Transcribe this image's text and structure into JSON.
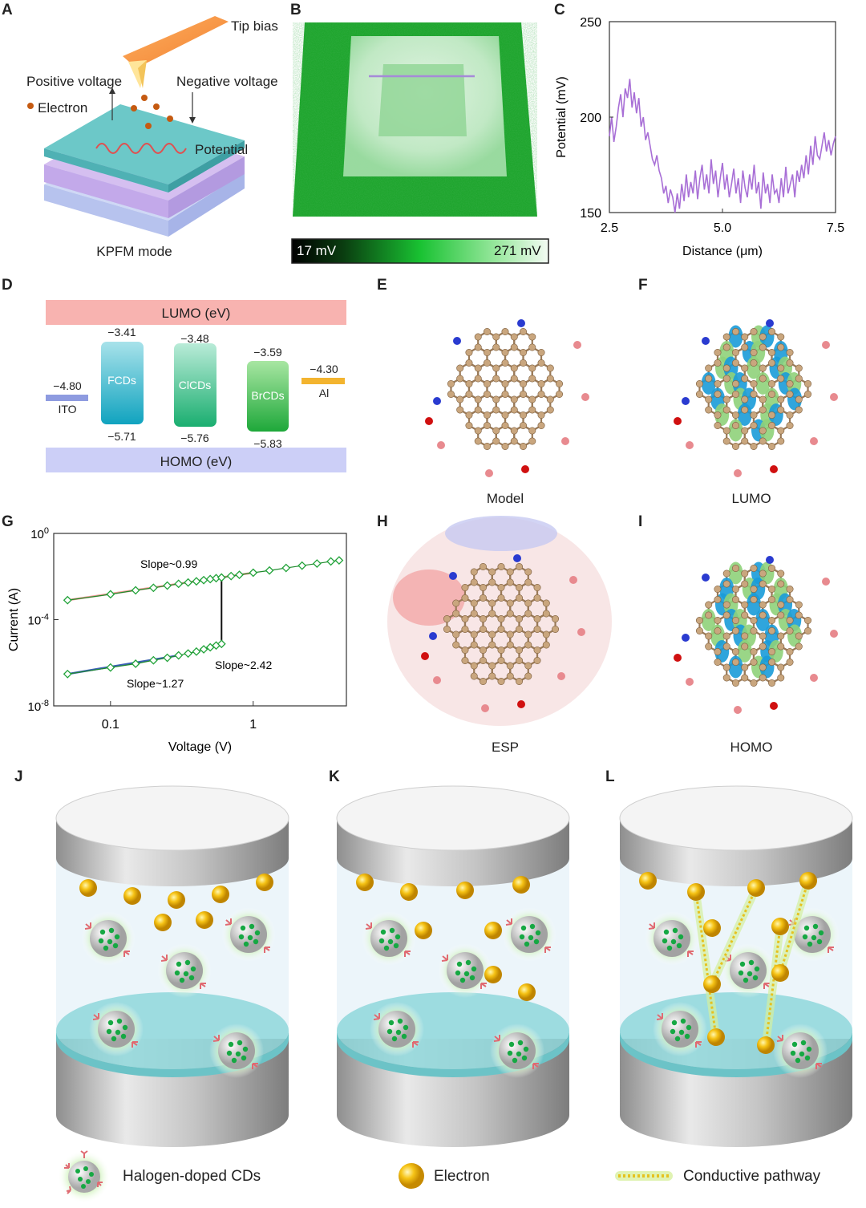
{
  "panels": {
    "A": {
      "letter": "A",
      "tip": "Tip bias",
      "pos": "Positive voltage",
      "neg": "Negative voltage",
      "electron": "Electron",
      "potential": "Potential",
      "caption": "KPFM mode"
    },
    "B": {
      "letter": "B",
      "cb_min": "17 mV",
      "cb_max": "271 mV"
    },
    "C": {
      "letter": "C"
    },
    "D": {
      "letter": "D",
      "lumo": "LUMO (eV)",
      "homo": "HOMO (eV)",
      "ito": {
        "label": "ITO",
        "value": "−4.80"
      },
      "al": {
        "label": "Al",
        "value": "−4.30"
      },
      "bars": [
        {
          "name": "FCDs",
          "top": "−3.41",
          "bottom": "−5.71"
        },
        {
          "name": "ClCDs",
          "top": "−3.48",
          "bottom": "−5.76"
        },
        {
          "name": "BrCDs",
          "top": "−3.59",
          "bottom": "−5.83"
        }
      ]
    },
    "E": {
      "letter": "E",
      "caption": "Model"
    },
    "F": {
      "letter": "F",
      "caption": "LUMO"
    },
    "G": {
      "letter": "G"
    },
    "H": {
      "letter": "H",
      "caption": "ESP"
    },
    "I": {
      "letter": "I",
      "caption": "HOMO"
    },
    "J": {
      "letter": "J"
    },
    "K": {
      "letter": "K"
    },
    "L": {
      "letter": "L"
    }
  },
  "legend": {
    "cd": "Halogen-doped CDs",
    "electron": "Electron",
    "pathway": "Conductive pathway"
  },
  "chart_data": [
    {
      "panel": "C",
      "type": "line",
      "xlabel": "Distance (μm)",
      "ylabel": "Potential (mV)",
      "xlim": [
        2.5,
        7.5
      ],
      "ylim": [
        150,
        250
      ],
      "xticks": [
        "2.5",
        "5.0",
        "7.5"
      ],
      "yticks": [
        "150",
        "200",
        "250"
      ],
      "x": [
        2.5,
        2.55,
        2.6,
        2.65,
        2.7,
        2.75,
        2.8,
        2.85,
        2.9,
        2.95,
        3.0,
        3.05,
        3.1,
        3.15,
        3.2,
        3.25,
        3.3,
        3.35,
        3.4,
        3.45,
        3.5,
        3.55,
        3.6,
        3.65,
        3.7,
        3.75,
        3.8,
        3.85,
        3.9,
        3.95,
        4.0,
        4.05,
        4.1,
        4.15,
        4.2,
        4.25,
        4.3,
        4.35,
        4.4,
        4.45,
        4.5,
        4.55,
        4.6,
        4.65,
        4.7,
        4.75,
        4.8,
        4.85,
        4.9,
        4.95,
        5.0,
        5.05,
        5.1,
        5.15,
        5.2,
        5.25,
        5.3,
        5.35,
        5.4,
        5.45,
        5.5,
        5.55,
        5.6,
        5.65,
        5.7,
        5.75,
        5.8,
        5.85,
        5.9,
        5.95,
        6.0,
        6.05,
        6.1,
        6.15,
        6.2,
        6.25,
        6.3,
        6.35,
        6.4,
        6.45,
        6.5,
        6.55,
        6.6,
        6.65,
        6.7,
        6.75,
        6.8,
        6.85,
        6.9,
        6.95,
        7.0,
        7.05,
        7.1,
        7.15,
        7.2,
        7.25,
        7.3,
        7.35,
        7.4,
        7.45,
        7.5
      ],
      "y": [
        190,
        200,
        187,
        195,
        205,
        212,
        200,
        215,
        210,
        220,
        205,
        213,
        202,
        210,
        195,
        200,
        188,
        192,
        185,
        178,
        175,
        180,
        172,
        168,
        160,
        164,
        155,
        162,
        158,
        150,
        160,
        152,
        165,
        156,
        170,
        158,
        166,
        160,
        172,
        157,
        168,
        175,
        162,
        170,
        160,
        178,
        165,
        172,
        158,
        168,
        176,
        162,
        170,
        158,
        165,
        173,
        160,
        168,
        155,
        172,
        163,
        158,
        170,
        162,
        175,
        160,
        166,
        152,
        171,
        160,
        165,
        155,
        170,
        160,
        162,
        155,
        168,
        158,
        174,
        160,
        165,
        170,
        158,
        172,
        166,
        175,
        168,
        180,
        170,
        185,
        175,
        190,
        180,
        178,
        185,
        192,
        182,
        188,
        180,
        186,
        190
      ]
    },
    {
      "panel": "G",
      "type": "scatter",
      "xlabel": "Voltage (V)",
      "ylabel": "Current (A)",
      "xscale": "log",
      "yscale": "log",
      "xlim": [
        0.04,
        4.5
      ],
      "ylim": [
        1e-08,
        1
      ],
      "xticks": [
        "0.1",
        "1"
      ],
      "yticks_base": [
        "10",
        "10",
        "10"
      ],
      "yticks_exp": [
        "0",
        "-4",
        "-8"
      ],
      "annotations": [
        {
          "text": "Slope~0.99"
        },
        {
          "text": "Slope~2.42"
        },
        {
          "text": "Slope~1.27"
        }
      ],
      "series": [
        {
          "segment": "low-resistance",
          "x": [
            0.05,
            0.1,
            0.15,
            0.2,
            0.25,
            0.3,
            0.35,
            0.4,
            0.45,
            0.5,
            0.55,
            0.6,
            0.7,
            0.8,
            1.0,
            1.3,
            1.7,
            2.2,
            2.8,
            3.5,
            4.0
          ],
          "y": [
            0.0008,
            0.0015,
            0.0023,
            0.003,
            0.0038,
            0.0046,
            0.0053,
            0.006,
            0.0068,
            0.0076,
            0.0084,
            0.009,
            0.0105,
            0.012,
            0.015,
            0.019,
            0.025,
            0.032,
            0.04,
            0.05,
            0.056
          ]
        },
        {
          "segment": "high-resistance",
          "x": [
            0.05,
            0.1,
            0.15,
            0.2,
            0.25,
            0.3,
            0.35,
            0.4,
            0.45,
            0.5,
            0.55,
            0.6
          ],
          "y": [
            3e-07,
            6e-07,
            9e-07,
            1.3e-06,
            1.7e-06,
            2.2e-06,
            2.7e-06,
            3.3e-06,
            4.2e-06,
            5.2e-06,
            6.3e-06,
            7.5e-06
          ]
        }
      ]
    }
  ]
}
